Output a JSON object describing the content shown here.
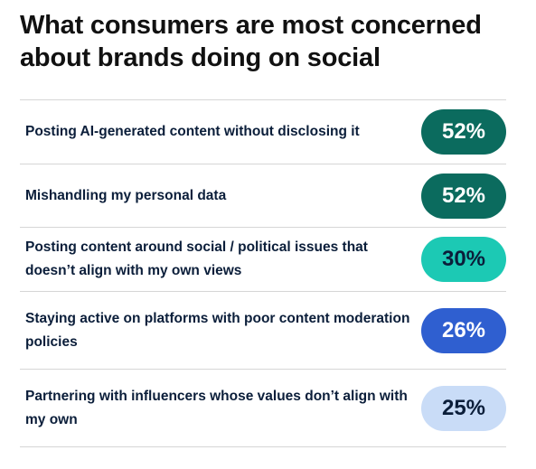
{
  "chart_data": {
    "type": "table",
    "title": "What consumers are most concerned about brands doing on social",
    "unit": "%",
    "rows": [
      {
        "label": "Posting AI-generated content without disclosing it",
        "value": 52,
        "display": "52%",
        "color": "#0b6b5e",
        "text_color": "#ffffff"
      },
      {
        "label": "Mishandling my personal data",
        "value": 52,
        "display": "52%",
        "color": "#0b6b5e",
        "text_color": "#ffffff"
      },
      {
        "label": "Posting content around social / political issues that doesn’t align with my own views",
        "value": 30,
        "display": "30%",
        "color": "#1cc9b4",
        "text_color": "#0b1e3a"
      },
      {
        "label": "Staying active on platforms with poor content moderation policies",
        "value": 26,
        "display": "26%",
        "color": "#2f5fd0",
        "text_color": "#ffffff"
      },
      {
        "label": "Partnering with influencers whose values don’t align with my own",
        "value": 25,
        "display": "25%",
        "color": "#c9dcf7",
        "text_color": "#0b1e3a"
      }
    ]
  }
}
